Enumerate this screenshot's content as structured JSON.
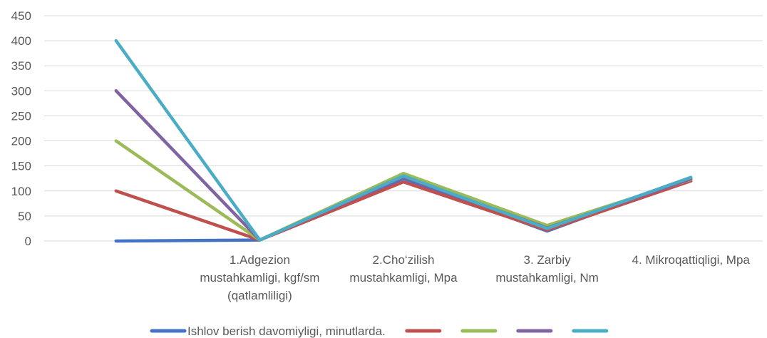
{
  "chart_data": {
    "type": "line",
    "title": "",
    "xlabel": "",
    "ylabel": "",
    "ylim": [
      0,
      450
    ],
    "yticks": [
      0,
      50,
      100,
      150,
      200,
      250,
      300,
      350,
      400,
      450
    ],
    "grid": true,
    "legend_position": "bottom",
    "categories": [
      "",
      "1.Adgezion mustahkamligi, kgf/sm (qatlamliligi)",
      "2.Cho‘zilish mustahkamligi, Mpa",
      "3. Zarbiy mustahkamligi, Nm",
      "4. Mikroqattiqligi, Mpa"
    ],
    "category_lines": [
      [
        ""
      ],
      [
        "1.Adgezion",
        "mustahkamligi, kgf/sm",
        "(qatlamliligi)"
      ],
      [
        "2.Cho‘zilish",
        "mustahkamligi, Mpa"
      ],
      [
        "3. Zarbiy",
        "mustahkamligi, Nm"
      ],
      [
        "4. Mikroqattiqligi, Mpa"
      ]
    ],
    "series": [
      {
        "name": "Ishlov berish davomiyligi, minutlarda.",
        "color": "#4472C4",
        "values": [
          0,
          2,
          125,
          20,
          125
        ]
      },
      {
        "name": "",
        "color": "#C0504D",
        "values": [
          100,
          2,
          118,
          22,
          120
        ]
      },
      {
        "name": "",
        "color": "#9BBB59",
        "values": [
          200,
          2,
          135,
          31,
          123
        ]
      },
      {
        "name": "",
        "color": "#8064A2",
        "values": [
          300,
          2,
          128,
          26,
          124
        ]
      },
      {
        "name": "",
        "color": "#4BACC6",
        "values": [
          400,
          2,
          130,
          25,
          127
        ]
      }
    ]
  }
}
